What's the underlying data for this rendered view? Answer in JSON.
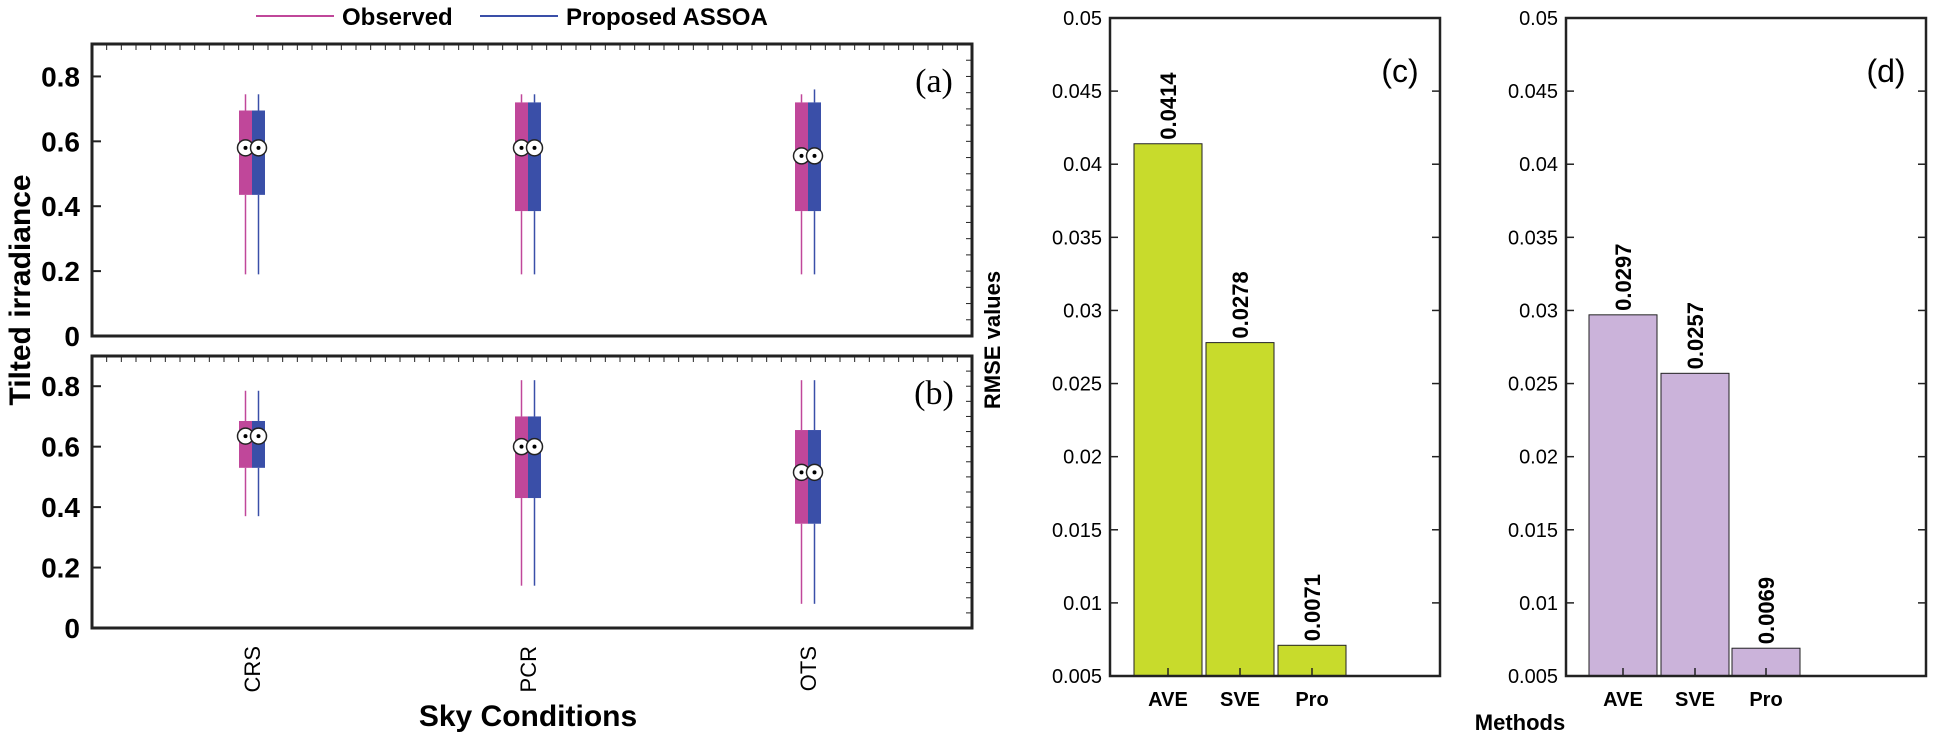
{
  "legend": {
    "observed": "Observed",
    "proposed": "Proposed ASSOA",
    "observed_color": "#c0479a",
    "proposed_color": "#3a4fa8"
  },
  "chart_data": [
    {
      "id": "a",
      "type": "box",
      "panel_label": "(a)",
      "ylabel": "Tilted irradiance",
      "xlabel": "Sky Conditions",
      "ylim": [
        0,
        0.9
      ],
      "yticks": [
        "0",
        "0.2",
        "0.4",
        "0.6",
        "0.8"
      ],
      "yticks_values": [
        0,
        0.2,
        0.4,
        0.6,
        0.8
      ],
      "categories": [
        "CRS",
        "PCR",
        "OTS"
      ],
      "series": [
        {
          "name": "Observed",
          "boxes": [
            {
              "min": 0.19,
              "q1": 0.435,
              "median": 0.58,
              "q3": 0.695,
              "max": 0.745
            },
            {
              "min": 0.19,
              "q1": 0.385,
              "median": 0.58,
              "q3": 0.72,
              "max": 0.745
            },
            {
              "min": 0.19,
              "q1": 0.385,
              "median": 0.555,
              "q3": 0.72,
              "max": 0.745
            }
          ]
        },
        {
          "name": "Proposed ASSOA",
          "boxes": [
            {
              "min": 0.19,
              "q1": 0.435,
              "median": 0.58,
              "q3": 0.695,
              "max": 0.745
            },
            {
              "min": 0.19,
              "q1": 0.385,
              "median": 0.58,
              "q3": 0.72,
              "max": 0.745
            },
            {
              "min": 0.19,
              "q1": 0.385,
              "median": 0.555,
              "q3": 0.72,
              "max": 0.76
            }
          ]
        }
      ]
    },
    {
      "id": "b",
      "type": "box",
      "panel_label": "(b)",
      "ylim": [
        0,
        0.9
      ],
      "yticks": [
        "0",
        "0.2",
        "0.4",
        "0.6",
        "0.8"
      ],
      "yticks_values": [
        0,
        0.2,
        0.4,
        0.6,
        0.8
      ],
      "categories": [
        "CRS",
        "PCR",
        "OTS"
      ],
      "series": [
        {
          "name": "Observed",
          "boxes": [
            {
              "min": 0.37,
              "q1": 0.53,
              "median": 0.635,
              "q3": 0.685,
              "max": 0.785
            },
            {
              "min": 0.14,
              "q1": 0.43,
              "median": 0.6,
              "q3": 0.7,
              "max": 0.82
            },
            {
              "min": 0.08,
              "q1": 0.345,
              "median": 0.515,
              "q3": 0.655,
              "max": 0.82
            }
          ]
        },
        {
          "name": "Proposed ASSOA",
          "boxes": [
            {
              "min": 0.37,
              "q1": 0.53,
              "median": 0.635,
              "q3": 0.685,
              "max": 0.785
            },
            {
              "min": 0.14,
              "q1": 0.43,
              "median": 0.6,
              "q3": 0.7,
              "max": 0.82
            },
            {
              "min": 0.08,
              "q1": 0.345,
              "median": 0.515,
              "q3": 0.655,
              "max": 0.82
            }
          ]
        }
      ]
    },
    {
      "id": "c",
      "type": "bar",
      "panel_label": "(c)",
      "ylabel": "RMSE values",
      "ylim": [
        0.005,
        0.05
      ],
      "yticks": [
        "0.005",
        "0.01",
        "0.015",
        "0.02",
        "0.025",
        "0.03",
        "0.035",
        "0.04",
        "0.045",
        "0.05"
      ],
      "yticks_values": [
        0.005,
        0.01,
        0.015,
        0.02,
        0.025,
        0.03,
        0.035,
        0.04,
        0.045,
        0.05
      ],
      "categories": [
        "AVE",
        "SVE",
        "Pro"
      ],
      "values": [
        0.0414,
        0.0278,
        0.0071
      ],
      "labels": [
        "0.0414",
        "0.0278",
        "0.0071"
      ],
      "color": "#c8db2c"
    },
    {
      "id": "d",
      "type": "bar",
      "panel_label": "(d)",
      "xlabel": "Methods",
      "ylim": [
        0.005,
        0.05
      ],
      "yticks": [
        "0.005",
        "0.01",
        "0.015",
        "0.02",
        "0.025",
        "0.03",
        "0.035",
        "0.04",
        "0.045",
        "0.05"
      ],
      "yticks_values": [
        0.005,
        0.01,
        0.015,
        0.02,
        0.025,
        0.03,
        0.035,
        0.04,
        0.045,
        0.05
      ],
      "categories": [
        "AVE",
        "SVE",
        "Pro"
      ],
      "values": [
        0.0297,
        0.0257,
        0.0069
      ],
      "labels": [
        "0.0297",
        "0.0257",
        "0.0069"
      ],
      "color": "#cbb3da"
    }
  ]
}
